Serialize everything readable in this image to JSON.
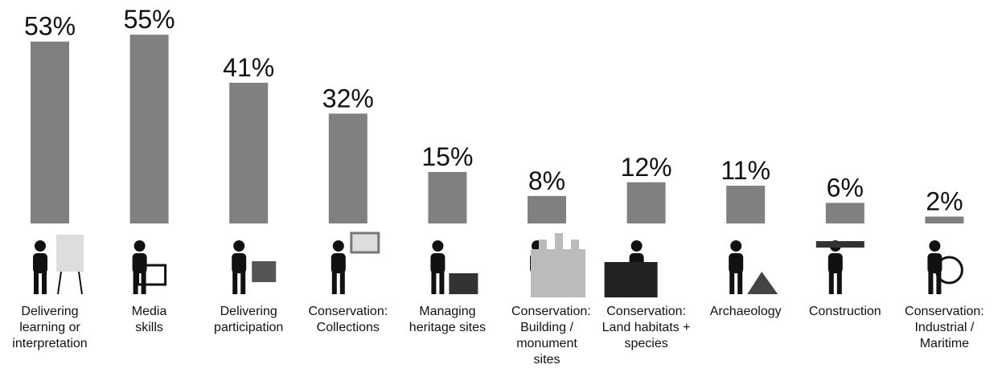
{
  "chart_data": {
    "type": "bar",
    "categories": [
      "Delivering learning or interpretation",
      "Media skills",
      "Delivering participation",
      "Conservation: Collections",
      "Managing heritage sites",
      "Conservation: Building / monument sites",
      "Conservation: Land habitats + species",
      "Archaeology",
      "Construction",
      "Conservation: Industrial / Maritime"
    ],
    "values": [
      53,
      55,
      41,
      32,
      15,
      8,
      12,
      11,
      6,
      2
    ],
    "value_labels": [
      "53%",
      "55%",
      "41%",
      "32%",
      "15%",
      "8%",
      "12%",
      "11%",
      "6%",
      "2%"
    ],
    "color": "#808080"
  }
}
